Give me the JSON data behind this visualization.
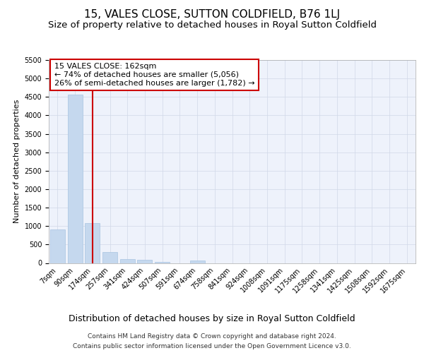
{
  "title": "15, VALES CLOSE, SUTTON COLDFIELD, B76 1LJ",
  "subtitle": "Size of property relative to detached houses in Royal Sutton Coldfield",
  "xlabel": "Distribution of detached houses by size in Royal Sutton Coldfield",
  "ylabel": "Number of detached properties",
  "categories": [
    "7sqm",
    "90sqm",
    "174sqm",
    "257sqm",
    "341sqm",
    "424sqm",
    "507sqm",
    "591sqm",
    "674sqm",
    "758sqm",
    "841sqm",
    "924sqm",
    "1008sqm",
    "1091sqm",
    "1175sqm",
    "1258sqm",
    "1341sqm",
    "1425sqm",
    "1508sqm",
    "1592sqm",
    "1675sqm"
  ],
  "values": [
    900,
    4560,
    1080,
    290,
    100,
    95,
    20,
    0,
    70,
    0,
    0,
    0,
    0,
    0,
    0,
    0,
    0,
    0,
    0,
    0,
    0
  ],
  "bar_color": "#c5d8ee",
  "bar_edge_color": "#a8c4e0",
  "vline_x_idx": 2,
  "vline_color": "#cc0000",
  "annotation_line1": "15 VALES CLOSE: 162sqm",
  "annotation_line2": "← 74% of detached houses are smaller (5,056)",
  "annotation_line3": "26% of semi-detached houses are larger (1,782) →",
  "annotation_box_facecolor": "#ffffff",
  "annotation_box_edgecolor": "#cc0000",
  "ylim_max": 5500,
  "yticks": [
    0,
    500,
    1000,
    1500,
    2000,
    2500,
    3000,
    3500,
    4000,
    4500,
    5000,
    5500
  ],
  "grid_color": "#d0d8e8",
  "background_color": "#eef2fb",
  "footer_line1": "Contains HM Land Registry data © Crown copyright and database right 2024.",
  "footer_line2": "Contains public sector information licensed under the Open Government Licence v3.0.",
  "title_fontsize": 11,
  "subtitle_fontsize": 9.5,
  "tick_fontsize": 7,
  "ylabel_fontsize": 8,
  "xlabel_fontsize": 9,
  "footer_fontsize": 6.5,
  "annotation_fontsize": 8
}
